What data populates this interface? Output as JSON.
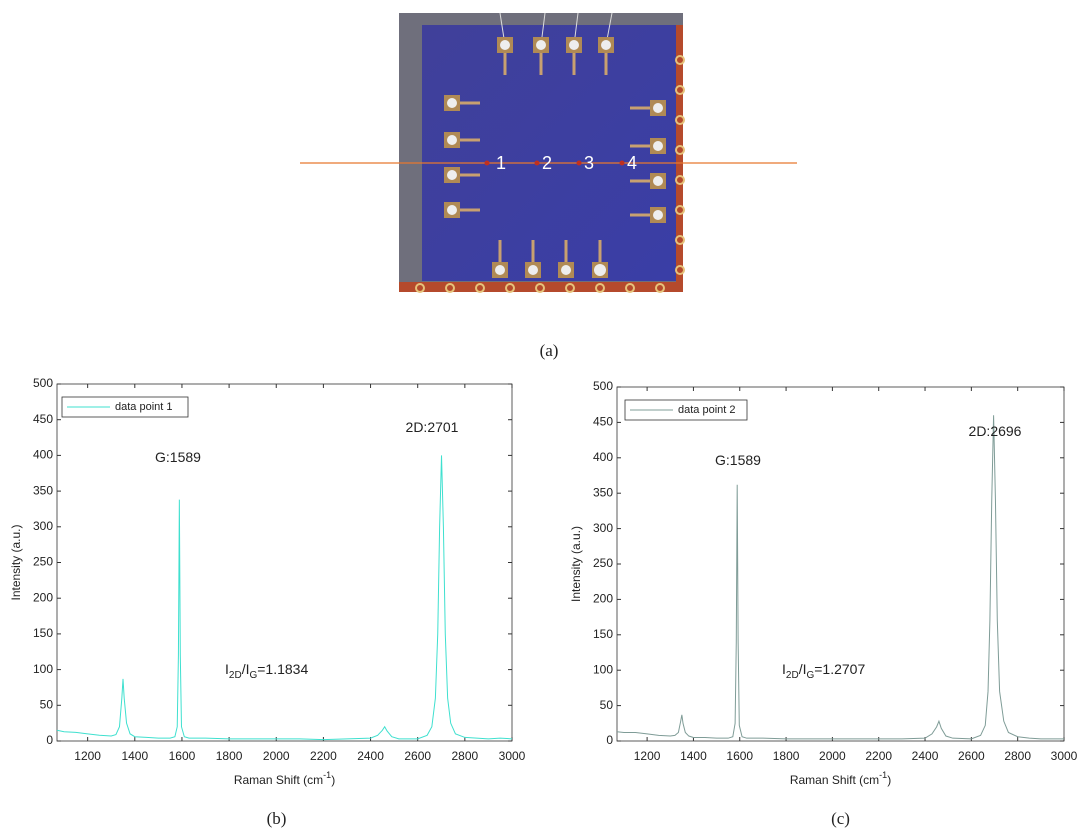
{
  "image": {
    "caption": "(a)",
    "point_labels": [
      "1",
      "2",
      "3",
      "4"
    ]
  },
  "chart_data": [
    {
      "type": "line",
      "caption": "(b)",
      "xlabel": [
        "Raman Shift (cm",
        "-1",
        ")"
      ],
      "ylabel": "Intensity (a.u.)",
      "x": [
        1070,
        1100,
        1150,
        1200,
        1250,
        1300,
        1320,
        1335,
        1345,
        1350,
        1355,
        1365,
        1380,
        1400,
        1450,
        1500,
        1550,
        1570,
        1580,
        1585,
        1589,
        1593,
        1598,
        1610,
        1630,
        1700,
        1800,
        1900,
        2000,
        2100,
        2200,
        2300,
        2400,
        2430,
        2450,
        2460,
        2470,
        2490,
        2520,
        2600,
        2640,
        2660,
        2675,
        2685,
        2693,
        2701,
        2709,
        2717,
        2727,
        2740,
        2760,
        2800,
        2850,
        2900,
        2950,
        3000
      ],
      "series": [
        {
          "name": "data point 1",
          "color": "#3fe0cf",
          "values": [
            15,
            13,
            12,
            10,
            8,
            7,
            9,
            20,
            60,
            87,
            60,
            25,
            10,
            6,
            5,
            4,
            4,
            6,
            20,
            120,
            338,
            120,
            20,
            6,
            4,
            4,
            3,
            3,
            3,
            3,
            2,
            3,
            4,
            8,
            15,
            20,
            14,
            6,
            3,
            3,
            8,
            20,
            60,
            150,
            300,
            400,
            300,
            150,
            60,
            25,
            10,
            5,
            4,
            3,
            4,
            3
          ]
        }
      ],
      "xlim": [
        1070,
        3000
      ],
      "xticks": [
        1200,
        1400,
        1600,
        1800,
        2000,
        2200,
        2400,
        2600,
        2800,
        3000
      ],
      "ylim": [
        0,
        500
      ],
      "yticks": [
        0,
        50,
        100,
        150,
        200,
        250,
        300,
        350,
        400,
        450,
        500
      ],
      "legend": "upper left",
      "annotations": [
        [
          "G:1589"
        ],
        [
          "2D:2701"
        ],
        [
          "I",
          "2D",
          "/I",
          "G",
          "=1.1834"
        ]
      ]
    },
    {
      "type": "line",
      "caption": "(c)",
      "xlabel": [
        "Raman Shift (cm",
        "-1",
        ")"
      ],
      "ylabel": "Intensity (a.u.)",
      "x": [
        1070,
        1100,
        1150,
        1200,
        1250,
        1300,
        1320,
        1335,
        1345,
        1350,
        1355,
        1365,
        1380,
        1400,
        1450,
        1500,
        1550,
        1570,
        1580,
        1585,
        1589,
        1593,
        1598,
        1610,
        1630,
        1700,
        1800,
        1900,
        2000,
        2100,
        2200,
        2300,
        2400,
        2430,
        2450,
        2460,
        2470,
        2490,
        2520,
        2600,
        2640,
        2660,
        2672,
        2680,
        2688,
        2696,
        2704,
        2712,
        2722,
        2740,
        2760,
        2800,
        2850,
        2900,
        2950,
        3000
      ],
      "series": [
        {
          "name": "data point 2",
          "color": "#7f9c97",
          "values": [
            13,
            12,
            12,
            10,
            8,
            7,
            8,
            12,
            28,
            37,
            25,
            12,
            7,
            5,
            5,
            4,
            4,
            6,
            25,
            140,
            362,
            140,
            22,
            6,
            4,
            4,
            3,
            3,
            3,
            3,
            3,
            3,
            4,
            10,
            20,
            28,
            18,
            7,
            4,
            3,
            8,
            22,
            70,
            170,
            340,
            460,
            340,
            170,
            70,
            28,
            12,
            6,
            4,
            3,
            3,
            3
          ]
        }
      ],
      "xlim": [
        1070,
        3000
      ],
      "xticks": [
        1200,
        1400,
        1600,
        1800,
        2000,
        2200,
        2400,
        2600,
        2800,
        3000
      ],
      "ylim": [
        0,
        500
      ],
      "yticks": [
        0,
        50,
        100,
        150,
        200,
        250,
        300,
        350,
        400,
        450,
        500
      ],
      "legend": "upper left",
      "annotations": [
        [
          "G:1589"
        ],
        [
          "2D:2696"
        ],
        [
          "I",
          "2D",
          "/I",
          "G",
          "=1.2707"
        ]
      ]
    }
  ]
}
